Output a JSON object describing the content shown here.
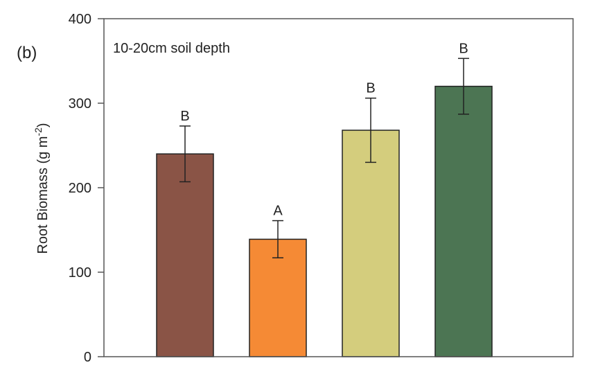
{
  "panel_label": "(b)",
  "chart_data": {
    "type": "bar",
    "title": "10-20cm soil depth",
    "ylabel": "Root Biomass (g m⁻²)",
    "ylabel_main": "Root Biomass (g m",
    "ylabel_sup": "-2",
    "ylabel_end": ")",
    "xlabel": "",
    "ylim": [
      0,
      400
    ],
    "yticks": [
      0,
      100,
      200,
      300,
      400
    ],
    "grid": false,
    "categories": [
      "",
      "",
      "",
      ""
    ],
    "values": [
      240,
      139,
      268,
      320
    ],
    "errors": [
      33,
      22,
      38,
      33
    ],
    "significance": [
      "B",
      "A",
      "B",
      "B"
    ],
    "colors": [
      "#8a5446",
      "#f58a35",
      "#d4cd7d",
      "#4c7553"
    ]
  }
}
